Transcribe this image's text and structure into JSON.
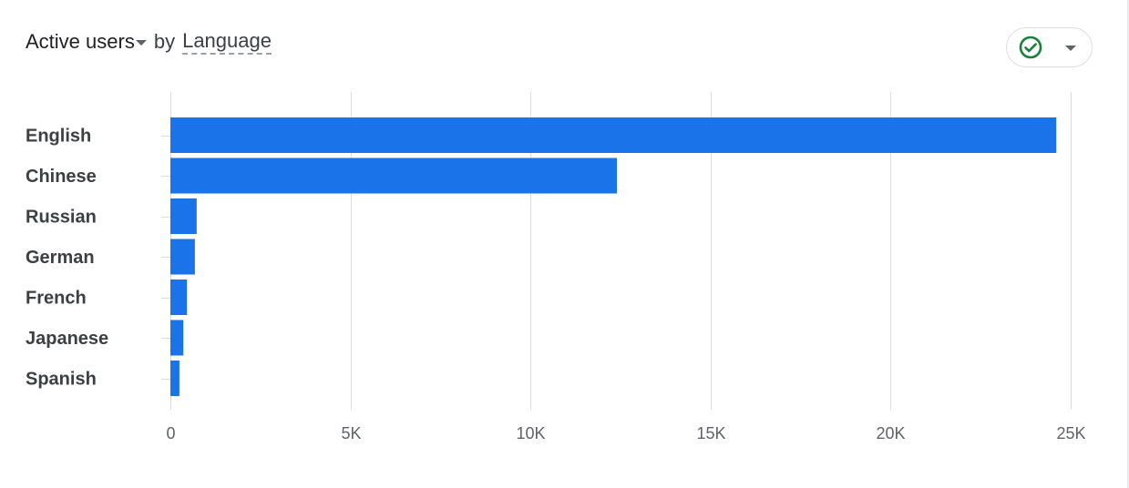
{
  "header": {
    "metric": "Active users",
    "by": "by",
    "dimension": "Language"
  },
  "status": {
    "icon": "check-circle-icon",
    "color": "#188038"
  },
  "chart_data": {
    "type": "bar",
    "orientation": "horizontal",
    "categories": [
      "English",
      "Chinese",
      "Russian",
      "German",
      "French",
      "Japanese",
      "Spanish"
    ],
    "values": [
      24600,
      12400,
      730,
      680,
      460,
      360,
      250
    ],
    "xlim": [
      0,
      25000
    ],
    "ticks": [
      0,
      5000,
      10000,
      15000,
      20000,
      25000
    ],
    "tick_labels": [
      "0",
      "5K",
      "10K",
      "15K",
      "20K",
      "25K"
    ],
    "grid": "vertical",
    "bar_color": "#1a73e8",
    "title": "",
    "xlabel": "",
    "ylabel": ""
  }
}
